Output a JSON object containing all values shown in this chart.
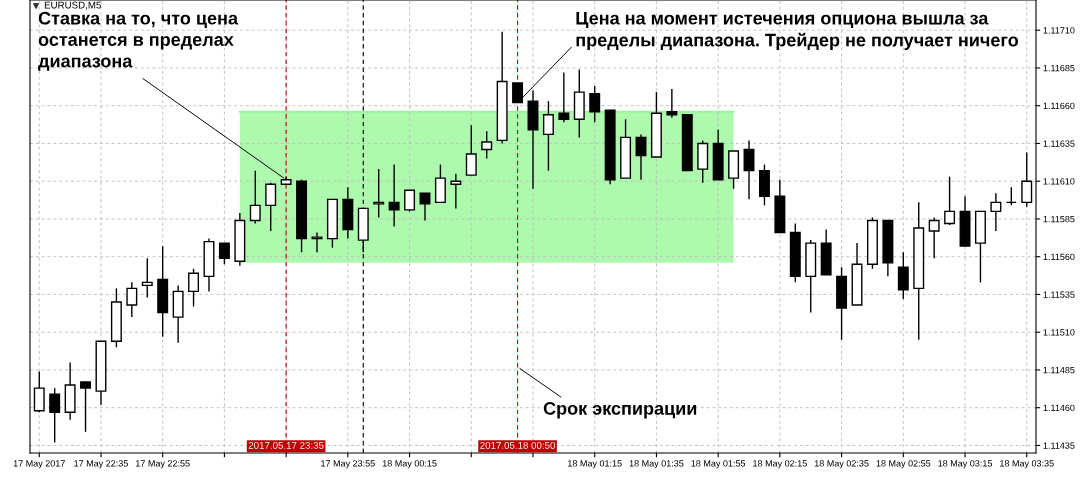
{
  "chart_data": {
    "type": "candlestick",
    "title": "EURUSD,M5",
    "x": [
      "2017-05-17T22:15",
      "2017-05-17T22:20",
      "2017-05-17T22:25",
      "2017-05-17T22:30",
      "2017-05-17T22:35",
      "2017-05-17T22:40",
      "2017-05-17T22:45",
      "2017-05-17T22:50",
      "2017-05-17T22:55",
      "2017-05-17T23:00",
      "2017-05-17T23:05",
      "2017-05-17T23:10",
      "2017-05-17T23:15",
      "2017-05-17T23:20",
      "2017-05-17T23:25",
      "2017-05-17T23:30",
      "2017-05-17T23:35",
      "2017-05-17T23:40",
      "2017-05-17T23:45",
      "2017-05-17T23:50",
      "2017-05-17T23:55",
      "2017-05-18T00:00",
      "2017-05-18T00:05",
      "2017-05-18T00:10",
      "2017-05-18T00:15",
      "2017-05-18T00:20",
      "2017-05-18T00:25",
      "2017-05-18T00:30",
      "2017-05-18T00:35",
      "2017-05-18T00:40",
      "2017-05-18T00:45",
      "2017-05-18T00:50",
      "2017-05-18T00:55",
      "2017-05-18T01:00",
      "2017-05-18T01:05",
      "2017-05-18T01:10",
      "2017-05-18T01:15",
      "2017-05-18T01:20",
      "2017-05-18T01:25",
      "2017-05-18T01:30",
      "2017-05-18T01:35",
      "2017-05-18T01:40",
      "2017-05-18T01:45",
      "2017-05-18T01:50",
      "2017-05-18T01:55",
      "2017-05-18T02:00",
      "2017-05-18T02:05",
      "2017-05-18T02:10",
      "2017-05-18T02:15",
      "2017-05-18T02:20",
      "2017-05-18T02:25",
      "2017-05-18T02:30",
      "2017-05-18T02:35",
      "2017-05-18T02:40",
      "2017-05-18T02:45",
      "2017-05-18T02:50",
      "2017-05-18T02:55",
      "2017-05-18T03:00",
      "2017-05-18T03:05",
      "2017-05-18T03:10",
      "2017-05-18T03:15",
      "2017-05-18T03:20",
      "2017-05-18T03:25",
      "2017-05-18T03:30",
      "2017-05-18T03:35"
    ],
    "ohlc": [
      [
        1.11458,
        1.11484,
        1.11457,
        1.11473
      ],
      [
        1.11469,
        1.11473,
        1.11437,
        1.11457
      ],
      [
        1.11457,
        1.1149,
        1.11452,
        1.11475
      ],
      [
        1.11477,
        1.11477,
        1.11444,
        1.11473
      ],
      [
        1.11471,
        1.11504,
        1.11462,
        1.11504
      ],
      [
        1.11504,
        1.11539,
        1.115,
        1.1153
      ],
      [
        1.11528,
        1.11543,
        1.1152,
        1.11539
      ],
      [
        1.11541,
        1.11559,
        1.11533,
        1.11543
      ],
      [
        1.11545,
        1.11567,
        1.11507,
        1.11523
      ],
      [
        1.1152,
        1.11541,
        1.11503,
        1.11537
      ],
      [
        1.11537,
        1.11552,
        1.11527,
        1.11549
      ],
      [
        1.11547,
        1.11572,
        1.11537,
        1.1157
      ],
      [
        1.11569,
        1.11569,
        1.11555,
        1.11559
      ],
      [
        1.11557,
        1.11589,
        1.11554,
        1.11584
      ],
      [
        1.11584,
        1.11617,
        1.11582,
        1.11594
      ],
      [
        1.11594,
        1.11609,
        1.11577,
        1.11608
      ],
      [
        1.11608,
        1.11613,
        1.11608,
        1.11611
      ],
      [
        1.1161,
        1.11611,
        1.11563,
        1.11572
      ],
      [
        1.11572,
        1.11576,
        1.11563,
        1.11573
      ],
      [
        1.11572,
        1.11598,
        1.11566,
        1.11598
      ],
      [
        1.11598,
        1.11606,
        1.11572,
        1.11578
      ],
      [
        1.11571,
        1.11592,
        1.11563,
        1.11592
      ],
      [
        1.11595,
        1.11618,
        1.11586,
        1.11596
      ],
      [
        1.11596,
        1.11621,
        1.1158,
        1.11591
      ],
      [
        1.11591,
        1.11604,
        1.1159,
        1.11604
      ],
      [
        1.11602,
        1.11602,
        1.11584,
        1.11595
      ],
      [
        1.11596,
        1.11621,
        1.11596,
        1.11612
      ],
      [
        1.11608,
        1.11615,
        1.11592,
        1.1161
      ],
      [
        1.11614,
        1.11647,
        1.11614,
        1.11628
      ],
      [
        1.11631,
        1.11643,
        1.11625,
        1.11636
      ],
      [
        1.11637,
        1.11709,
        1.11635,
        1.11676
      ],
      [
        1.11675,
        1.11675,
        1.11662,
        1.11662
      ],
      [
        1.11663,
        1.1167,
        1.11605,
        1.11644
      ],
      [
        1.11641,
        1.11663,
        1.11617,
        1.11654
      ],
      [
        1.11655,
        1.11682,
        1.11649,
        1.11651
      ],
      [
        1.11651,
        1.11684,
        1.11639,
        1.11669
      ],
      [
        1.11668,
        1.11673,
        1.11649,
        1.11656
      ],
      [
        1.11657,
        1.11657,
        1.11608,
        1.11611
      ],
      [
        1.11612,
        1.11651,
        1.11612,
        1.11639
      ],
      [
        1.11639,
        1.11641,
        1.11611,
        1.11627
      ],
      [
        1.11626,
        1.11669,
        1.11626,
        1.11655
      ],
      [
        1.11656,
        1.11671,
        1.11652,
        1.11654
      ],
      [
        1.11654,
        1.11654,
        1.11617,
        1.11617
      ],
      [
        1.11618,
        1.11637,
        1.11609,
        1.11635
      ],
      [
        1.11635,
        1.11644,
        1.11611,
        1.11611
      ],
      [
        1.11612,
        1.1163,
        1.11605,
        1.1163
      ],
      [
        1.11631,
        1.11637,
        1.11598,
        1.11617
      ],
      [
        1.11617,
        1.11621,
        1.11594,
        1.116
      ],
      [
        1.116,
        1.11611,
        1.11576,
        1.11576
      ],
      [
        1.11576,
        1.11582,
        1.11543,
        1.11547
      ],
      [
        1.11547,
        1.11571,
        1.11523,
        1.11569
      ],
      [
        1.11569,
        1.11578,
        1.11548,
        1.11548
      ],
      [
        1.11547,
        1.11553,
        1.11505,
        1.11526
      ],
      [
        1.11528,
        1.11569,
        1.11528,
        1.11555
      ],
      [
        1.11555,
        1.11586,
        1.11552,
        1.11584
      ],
      [
        1.11584,
        1.11584,
        1.11547,
        1.11556
      ],
      [
        1.11553,
        1.11563,
        1.11532,
        1.11538
      ],
      [
        1.11539,
        1.11596,
        1.11505,
        1.11579
      ],
      [
        1.11577,
        1.11586,
        1.11559,
        1.11584
      ],
      [
        1.11582,
        1.11613,
        1.11581,
        1.1159
      ],
      [
        1.1159,
        1.116,
        1.11567,
        1.11567
      ],
      [
        1.11569,
        1.1159,
        1.11543,
        1.1159
      ],
      [
        1.1159,
        1.11602,
        1.11577,
        1.11596
      ],
      [
        1.11596,
        1.11606,
        1.11594,
        1.11596
      ],
      [
        1.11596,
        1.11629,
        1.11593,
        1.1161
      ]
    ],
    "xlim": [
      "2017-05-17T22:12",
      "2017-05-18T03:38"
    ],
    "xticks": [
      {
        "value": "2017-05-17T22:15",
        "label": "17 May 2017"
      },
      {
        "value": "2017-05-17T22:35",
        "label": "17 May 22:35"
      },
      {
        "value": "2017-05-17T22:55",
        "label": "17 May 22:55"
      },
      {
        "value": "2017-05-17T23:15",
        "label": null
      },
      {
        "value": "2017-05-17T23:35",
        "label": null
      },
      {
        "value": "2017-05-17T23:55",
        "label": "17 May 23:55"
      },
      {
        "value": "2017-05-18T00:15",
        "label": "18 May 00:15"
      },
      {
        "value": "2017-05-18T00:35",
        "label": null
      },
      {
        "value": "2017-05-18T00:55",
        "label": null
      },
      {
        "value": "2017-05-18T01:15",
        "label": "18 May 01:15"
      },
      {
        "value": "2017-05-18T01:35",
        "label": "18 May 01:35"
      },
      {
        "value": "2017-05-18T01:55",
        "label": "18 May 01:55"
      },
      {
        "value": "2017-05-18T02:15",
        "label": "18 May 02:15"
      },
      {
        "value": "2017-05-18T02:35",
        "label": "18 May 02:35"
      },
      {
        "value": "2017-05-18T02:55",
        "label": "18 May 02:55"
      },
      {
        "value": "2017-05-18T03:15",
        "label": "18 May 03:15"
      },
      {
        "value": "2017-05-18T03:35",
        "label": "18 May 03:35"
      }
    ],
    "ylim": [
      1.1143,
      1.1173
    ],
    "yticks": [
      {
        "value": 1.11435,
        "label": "1.11435"
      },
      {
        "value": 1.1146,
        "label": "1.11460"
      },
      {
        "value": 1.11485,
        "label": "1.11485"
      },
      {
        "value": 1.1151,
        "label": "1.11510"
      },
      {
        "value": 1.11535,
        "label": "1.11535"
      },
      {
        "value": 1.1156,
        "label": "1.11560"
      },
      {
        "value": 1.11585,
        "label": "1.11585"
      },
      {
        "value": 1.1161,
        "label": "1.11610"
      },
      {
        "value": 1.11635,
        "label": "1.11635"
      },
      {
        "value": 1.1166,
        "label": "1.11660"
      },
      {
        "value": 1.11685,
        "label": "1.11685"
      },
      {
        "value": 1.1171,
        "label": "1.11710"
      }
    ],
    "grid": true,
    "series": [
      {
        "type": "line",
        "x": [
          "2017-05-17T23:20",
          "2017-05-18T02:00"
        ],
        "values": [
          1.11656,
          1.11656
        ],
        "lower": [
          1.11556,
          1.11556
        ],
        "upper": [
          1.11656,
          1.11656
        ],
        "color": "#98f898"
      }
    ],
    "ref_lines": [
      {
        "axis": "x",
        "value": "2017-05-17T23:35",
        "label": "2017.05.17 23:35",
        "color": "#c00000",
        "line_style": "dashed"
      },
      {
        "axis": "x",
        "value": "2017-05-18T00:00",
        "label": null,
        "color": "#000000",
        "line_style": "dashed"
      },
      {
        "axis": "x",
        "value": "2017-05-18T00:50",
        "label": "2017.05.18 00:50",
        "color": "#c00000",
        "line_style": "dashed"
      }
    ],
    "annotations": [
      {
        "text": "Ставка на то, что цена\nостанется в пределах\nдиапазона",
        "x": "2017-05-17T23:35",
        "y": 1.11611
      },
      {
        "text": "Цена на момент истечения опциона вышла за\nпределы диапазона. Трейдер не получает ничего",
        "x": "2017-05-18T00:50",
        "y": 1.11662
      },
      {
        "text": "Срок экспирации",
        "x": "2017-05-18T00:50",
        "y": 1.11487
      }
    ]
  }
}
